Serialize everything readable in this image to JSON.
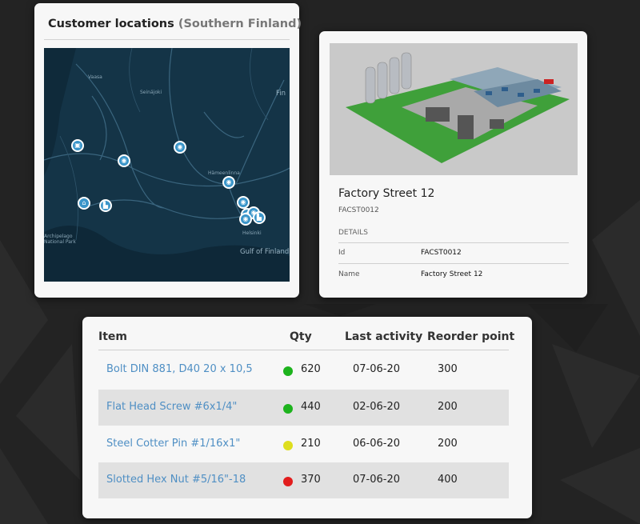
{
  "map_card": {
    "title": "Customer locations",
    "subtitle": "(Southern Finland)",
    "labels": [
      "Vaasa",
      "Seinäjoki",
      "Hämeenlinna",
      "Helsinki",
      "Gulf of Finland",
      "Fin",
      "Archipelago National Park"
    ],
    "pins": [
      "building-icon",
      "target-icon",
      "target-icon",
      "target-icon",
      "building-icon",
      "factory-icon",
      "target-icon",
      "target-icon",
      "target-icon",
      "factory-icon",
      "target-icon"
    ]
  },
  "detail_card": {
    "title": "Factory Street 12",
    "code": "FACST0012",
    "section_label": "DETAILS",
    "fields": [
      {
        "key": "Id",
        "value": "FACST0012"
      },
      {
        "key": "Name",
        "value": "Factory Street 12"
      }
    ]
  },
  "table": {
    "headers": {
      "item": "Item",
      "qty": "Qty",
      "last_activity": "Last activity",
      "reorder_point": "Reorder point"
    },
    "rows": [
      {
        "item": "Bolt DIN 881, D40 20 x 10,5",
        "status_color": "#1db31d",
        "qty": "620",
        "last_activity": "07-06-20",
        "reorder_point": "300"
      },
      {
        "item": "Flat Head Screw #6x1/4\"",
        "status_color": "#1db31d",
        "qty": "440",
        "last_activity": "02-06-20",
        "reorder_point": "200"
      },
      {
        "item": "Steel Cotter Pin #1/16x1\"",
        "status_color": "#dede1e",
        "qty": "210",
        "last_activity": "06-06-20",
        "reorder_point": "200"
      },
      {
        "item": "Slotted Hex Nut #5/16\"-18",
        "status_color": "#e21d1d",
        "qty": "370",
        "last_activity": "07-06-20",
        "reorder_point": "400"
      }
    ]
  }
}
